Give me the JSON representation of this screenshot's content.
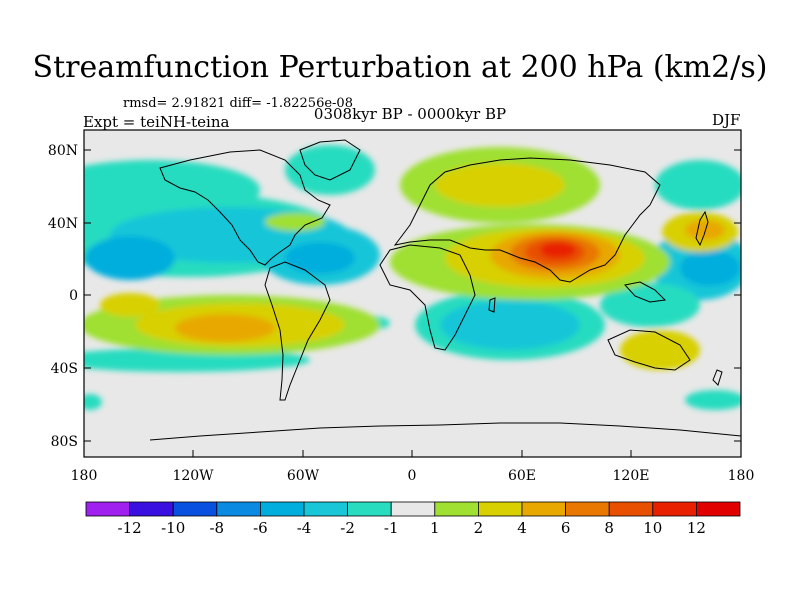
{
  "title": "Streamfunction Perturbation at 200 hPa (km2/s)",
  "stats": "rmsd= 2.91821 diff= -1.82256e-08",
  "experiment": "Expt = teiNH-teina",
  "period": "0308kyr BP - 0000kyr BP",
  "season": "DJF",
  "map": {
    "projection": "cylindrical equidistant",
    "lon_range": [
      -180,
      180
    ],
    "lat_range": [
      -90,
      90
    ],
    "lat_ticks": [
      "80N",
      "40N",
      "0",
      "40S",
      "80S"
    ],
    "lon_ticks": [
      "180",
      "120W",
      "60W",
      "0",
      "60E",
      "120E",
      "180"
    ],
    "features": {
      "positive_max": "Asia / India (near 80E, 25N)",
      "negative_min": "subtropical North Pacific and Atlantic"
    }
  },
  "colorbar": {
    "labels": [
      "-12",
      "-10",
      "-8",
      "-6",
      "-4",
      "-2",
      "-1",
      "1",
      "2",
      "4",
      "6",
      "8",
      "10",
      "12"
    ],
    "colors": [
      "#a020f0",
      "#3a10e0",
      "#0a50e0",
      "#0a8ae0",
      "#00aedd",
      "#18c6d8",
      "#28dcc0",
      "#e8e8e8",
      "#9fe030",
      "#d8d000",
      "#e8a800",
      "#e87800",
      "#e85000",
      "#e82000",
      "#e00000"
    ]
  },
  "chart_data": {
    "type": "heatmap",
    "title": "Streamfunction Perturbation at 200 hPa (km2/s)",
    "x_ticks": [
      "180",
      "120W",
      "60W",
      "0",
      "60E",
      "120E",
      "180"
    ],
    "y_ticks": [
      "80N",
      "40N",
      "0",
      "40S",
      "80S"
    ],
    "color_levels": [
      -12,
      -10,
      -8,
      -6,
      -4,
      -2,
      -1,
      1,
      2,
      4,
      6,
      8,
      10,
      12
    ]
  }
}
